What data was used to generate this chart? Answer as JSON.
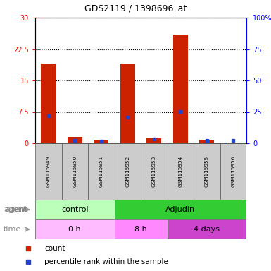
{
  "title": "GDS2119 / 1398696_at",
  "samples": [
    "GSM115949",
    "GSM115950",
    "GSM115951",
    "GSM115952",
    "GSM115953",
    "GSM115954",
    "GSM115955",
    "GSM115956"
  ],
  "count_values": [
    19.0,
    1.5,
    0.8,
    19.0,
    1.2,
    26.0,
    0.9,
    0.2
  ],
  "percentile_values": [
    22.0,
    2.0,
    1.5,
    21.0,
    3.5,
    25.5,
    2.0,
    2.0
  ],
  "ylim_left": [
    0,
    30
  ],
  "ylim_right": [
    0,
    100
  ],
  "yticks_left": [
    0,
    7.5,
    15,
    22.5,
    30
  ],
  "yticks_right": [
    0,
    25,
    50,
    75,
    100
  ],
  "ytick_labels_left": [
    "0",
    "7.5",
    "15",
    "22.5",
    "30"
  ],
  "ytick_labels_right": [
    "0",
    "25",
    "50",
    "75",
    "100%"
  ],
  "bar_color": "#cc2200",
  "dot_color": "#2244cc",
  "agent_row": [
    {
      "label": "control",
      "start": 0,
      "end": 3,
      "color": "#bbffbb"
    },
    {
      "label": "Adjudin",
      "start": 3,
      "end": 8,
      "color": "#33cc33"
    }
  ],
  "time_row": [
    {
      "label": "0 h",
      "start": 0,
      "end": 3,
      "color": "#ffbbff"
    },
    {
      "label": "8 h",
      "start": 3,
      "end": 5,
      "color": "#ff88ff"
    },
    {
      "label": "4 days",
      "start": 5,
      "end": 8,
      "color": "#cc44cc"
    }
  ],
  "legend_count_label": "count",
  "legend_perc_label": "percentile rank within the sample",
  "background_color": "#ffffff",
  "label_bg": "#cccccc",
  "agent_label": "agent",
  "time_label": "time"
}
